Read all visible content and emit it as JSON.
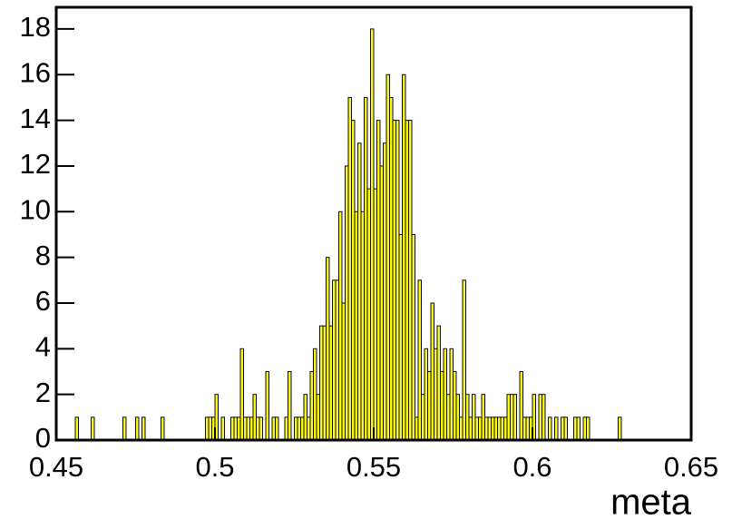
{
  "chart_data": {
    "type": "histogram",
    "x_label": "meta",
    "color": "#ffff00",
    "edge_color": "#000050",
    "bins": [
      0.45,
      0.451,
      0.452,
      0.453,
      0.454,
      0.455,
      0.456,
      0.457,
      0.458,
      0.459,
      0.46,
      0.461,
      0.462,
      0.463,
      0.464,
      0.465,
      0.466,
      0.467,
      0.468,
      0.469,
      0.47,
      0.471,
      0.472,
      0.473,
      0.474,
      0.475,
      0.476,
      0.477,
      0.478,
      0.479,
      0.48,
      0.481,
      0.482,
      0.483,
      0.484,
      0.485,
      0.486,
      0.487,
      0.488,
      0.489,
      0.49,
      0.491,
      0.492,
      0.493,
      0.494,
      0.495,
      0.496,
      0.497,
      0.498,
      0.499,
      0.5,
      0.501,
      0.502,
      0.503,
      0.504,
      0.505,
      0.506,
      0.507,
      0.508,
      0.509,
      0.51,
      0.511,
      0.512,
      0.513,
      0.514,
      0.515,
      0.516,
      0.517,
      0.518,
      0.519,
      0.52,
      0.521,
      0.522,
      0.523,
      0.524,
      0.525,
      0.526,
      0.527,
      0.528,
      0.529,
      0.53,
      0.531,
      0.532,
      0.533,
      0.534,
      0.535,
      0.536,
      0.537,
      0.538,
      0.539,
      0.54,
      0.541,
      0.542,
      0.543,
      0.544,
      0.545,
      0.546,
      0.547,
      0.548,
      0.549,
      0.55,
      0.551,
      0.552,
      0.553,
      0.554,
      0.555,
      0.556,
      0.557,
      0.558,
      0.559,
      0.56,
      0.561,
      0.562,
      0.563,
      0.564,
      0.565,
      0.566,
      0.567,
      0.568,
      0.569,
      0.57,
      0.571,
      0.572,
      0.573,
      0.574,
      0.575,
      0.576,
      0.577,
      0.578,
      0.579,
      0.58,
      0.581,
      0.582,
      0.583,
      0.584,
      0.585,
      0.586,
      0.587,
      0.588,
      0.589,
      0.59,
      0.591,
      0.592,
      0.593,
      0.594,
      0.595,
      0.596,
      0.597,
      0.598,
      0.599,
      0.6,
      0.601,
      0.602,
      0.603,
      0.604,
      0.605,
      0.606,
      0.607,
      0.608,
      0.609,
      0.61,
      0.611,
      0.612,
      0.613,
      0.614,
      0.615,
      0.616,
      0.617,
      0.618,
      0.619,
      0.62,
      0.621,
      0.622,
      0.623,
      0.624,
      0.625,
      0.626,
      0.627,
      0.628,
      0.629,
      0.63,
      0.631,
      0.632,
      0.633,
      0.634,
      0.635,
      0.636,
      0.637,
      0.638,
      0.639,
      0.64,
      0.641,
      0.642,
      0.643,
      0.644,
      0.645,
      0.646,
      0.647,
      0.648,
      0.649,
      0.65
    ],
    "values": [
      0,
      0,
      0,
      0,
      0,
      0,
      1,
      0,
      0,
      0,
      0,
      1,
      0,
      0,
      0,
      0,
      0,
      0,
      0,
      0,
      0,
      1,
      0,
      0,
      0,
      1,
      0,
      1,
      0,
      0,
      0,
      0,
      0,
      1,
      0,
      0,
      0,
      0,
      0,
      0,
      0,
      0,
      0,
      0,
      0,
      0,
      0,
      1,
      1,
      1,
      2,
      0,
      1,
      0,
      0,
      1,
      1,
      1,
      4,
      1,
      1,
      1,
      2,
      1,
      1,
      0,
      3,
      0,
      1,
      1,
      0,
      0,
      1,
      3,
      0,
      1,
      1,
      1,
      2,
      1,
      3,
      4,
      2,
      5,
      5,
      8,
      5,
      7,
      7,
      10,
      6,
      12,
      15,
      14,
      10,
      13,
      10,
      15,
      11,
      18,
      11,
      14,
      12,
      13,
      16,
      15,
      14,
      14,
      9,
      16,
      14,
      14,
      9,
      1,
      7,
      2,
      4,
      3,
      6,
      4,
      5,
      3,
      4,
      2,
      4,
      3,
      2,
      1,
      7,
      2,
      1,
      2,
      1,
      1,
      2,
      1,
      1,
      1,
      1,
      1,
      1,
      1,
      2,
      2,
      2,
      0,
      3,
      1,
      1,
      1,
      2,
      0,
      2,
      2,
      0,
      1,
      0,
      1,
      0,
      1,
      1,
      0,
      0,
      1,
      1,
      0,
      1,
      1,
      0,
      0,
      0,
      0,
      0,
      0,
      0,
      0,
      0,
      1,
      0,
      0,
      0,
      0,
      0,
      0,
      0,
      0,
      0,
      0,
      0,
      0,
      0,
      0,
      0,
      0,
      0,
      0,
      0,
      0,
      0,
      0
    ],
    "xlim": [
      0.45,
      0.65
    ],
    "xticks": [
      0.45,
      0.5,
      0.55,
      0.6,
      0.65
    ],
    "ylim": [
      0,
      18.95
    ],
    "yticks": [
      0,
      2,
      4,
      6,
      8,
      10,
      12,
      14,
      16,
      18
    ]
  }
}
